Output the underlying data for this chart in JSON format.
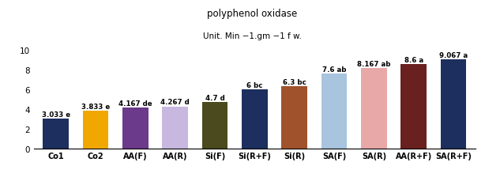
{
  "categories": [
    "Co1",
    "Co2",
    "AA(F)",
    "AA(R)",
    "Si(F)",
    "Si(R+F)",
    "Si(R)",
    "SA(F)",
    "SA(R)",
    "AA(R+F)",
    "SA(R+F)"
  ],
  "values": [
    3.033,
    3.833,
    4.167,
    4.267,
    4.7,
    6.0,
    6.3,
    7.6,
    8.167,
    8.6,
    9.067
  ],
  "labels": [
    "3.033 e",
    "3.833 e",
    "4.167 de",
    "4.267 d",
    "4.7 d",
    "6 bc",
    "6.3 bc",
    "7.6 ab",
    "8.167 ab",
    "8.6 a",
    "9.067 a"
  ],
  "bar_colors": [
    "#1c2f5e",
    "#f0a800",
    "#6b3a8a",
    "#c8b8e0",
    "#4a4a1e",
    "#1c2f5e",
    "#a0522d",
    "#a8c4de",
    "#e8a8a8",
    "#6b2020",
    "#1c2f5e"
  ],
  "title_line1": "polyphenol oxidase",
  "title_line2": "Unit. Min −1.gm −1 f w.",
  "ylim": [
    0,
    10
  ],
  "yticks": [
    0,
    2,
    4,
    6,
    8,
    10
  ],
  "background_color": "#ffffff"
}
